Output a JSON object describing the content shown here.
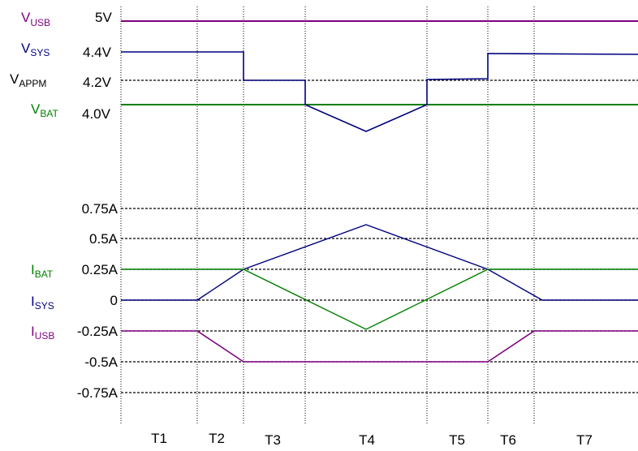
{
  "colors": {
    "usb": "#7f007f",
    "sys": "#00007f",
    "bat": "#007f00",
    "text": "#000000",
    "grid": "#000000"
  },
  "voltage_labels": {
    "usb": {
      "main": "V",
      "sub": "USB",
      "value": "5V"
    },
    "sys": {
      "main": "V",
      "sub": "SYS",
      "value": "4.4V"
    },
    "appm": {
      "main": "V",
      "sub": "APPM",
      "value": "4.2V"
    },
    "bat": {
      "main": "V",
      "sub": "BAT",
      "value": "4.0V"
    }
  },
  "current_labels": {
    "bat": {
      "main": "I",
      "sub": "BAT"
    },
    "sys": {
      "main": "I",
      "sub": "SYS"
    },
    "usb": {
      "main": "I",
      "sub": "USB"
    }
  },
  "current_ticks": [
    "0.75A",
    "0.5A",
    "0.25A",
    "0",
    "-0.25A",
    "-0.5A",
    "-0.75A"
  ],
  "phases": [
    "T1",
    "T2",
    "T3",
    "T4",
    "T5",
    "T6",
    "T7"
  ]
}
